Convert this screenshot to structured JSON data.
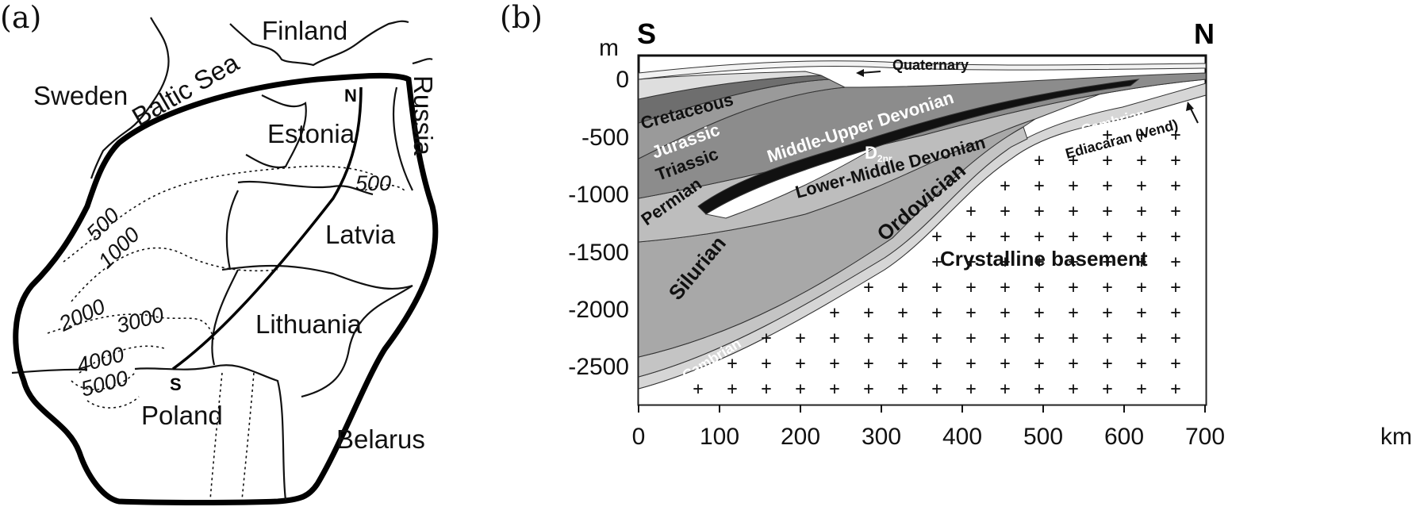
{
  "panel_a": {
    "label": "(a)",
    "countries": {
      "finland": "Finland",
      "sweden": "Sweden",
      "baltic_sea": "Baltic Sea",
      "russia": "Russia",
      "estonia": "Estonia",
      "latvia": "Latvia",
      "lithuania": "Lithuania",
      "poland": "Poland",
      "belarus": "Belarus"
    },
    "profile_ends": {
      "north": "N",
      "south": "S"
    },
    "contours": [
      "500",
      "1000",
      "2000",
      "3000",
      "4000",
      "5000",
      "500"
    ]
  },
  "panel_b": {
    "label": "(b)",
    "direction_left": "S",
    "direction_right": "N",
    "y_unit": "m",
    "x_unit": "km",
    "y_ticks": [
      "0",
      "-500",
      "-1000",
      "-1500",
      "-2000",
      "-2500"
    ],
    "x_ticks": [
      "0",
      "100",
      "200",
      "300",
      "400",
      "500",
      "600",
      "700"
    ],
    "layers": {
      "quaternary": "Quaternary",
      "cretaceous": "Cretaceous",
      "jurassic": "Jurassic",
      "triassic": "Triassic",
      "permian": "Permian",
      "middle_upper_devonian": "Middle-Upper Devonian",
      "d2nr": "D",
      "d2nr_sub": "2nr",
      "lower_middle_devonian": "Lower-Middle Devonian",
      "silurian": "Silurian",
      "ordovician": "Ordovician",
      "cambrian_left": "Cambrian",
      "cambrian_right": "Cambrian",
      "ediacaran": "Ediacaran (Vend)",
      "basement": "Crystalline basement"
    }
  }
}
